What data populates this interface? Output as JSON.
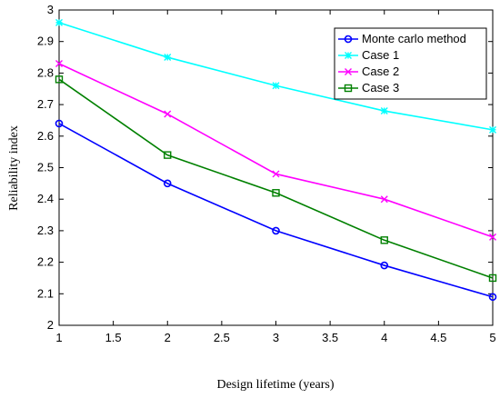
{
  "chart_data": {
    "type": "line",
    "xlabel": "Design lifetime (years)",
    "ylabel": "Reliability index",
    "xlim": [
      1,
      5
    ],
    "ylim": [
      2,
      3
    ],
    "xticks": [
      "1",
      "1.5",
      "2",
      "2.5",
      "3",
      "3.5",
      "4",
      "4.5",
      "5"
    ],
    "yticks": [
      "2",
      "2.1",
      "2.2",
      "2.3",
      "2.4",
      "2.5",
      "2.6",
      "2.7",
      "2.8",
      "2.9",
      "3"
    ],
    "grid": false,
    "legend_position": "top-right",
    "x": [
      1,
      2,
      3,
      4,
      5
    ],
    "series": [
      {
        "name": "Monte carlo method",
        "values": [
          2.64,
          2.45,
          2.3,
          2.19,
          2.09
        ],
        "color": "#0000ff",
        "marker": "circle"
      },
      {
        "name": "Case 1",
        "values": [
          2.96,
          2.85,
          2.76,
          2.68,
          2.62
        ],
        "color": "#00ffff",
        "marker": "star"
      },
      {
        "name": "Case 2",
        "values": [
          2.83,
          2.67,
          2.48,
          2.4,
          2.28
        ],
        "color": "#ff00ff",
        "marker": "x"
      },
      {
        "name": "Case 3",
        "values": [
          2.78,
          2.54,
          2.42,
          2.27,
          2.15
        ],
        "color": "#008000",
        "marker": "square"
      }
    ]
  }
}
